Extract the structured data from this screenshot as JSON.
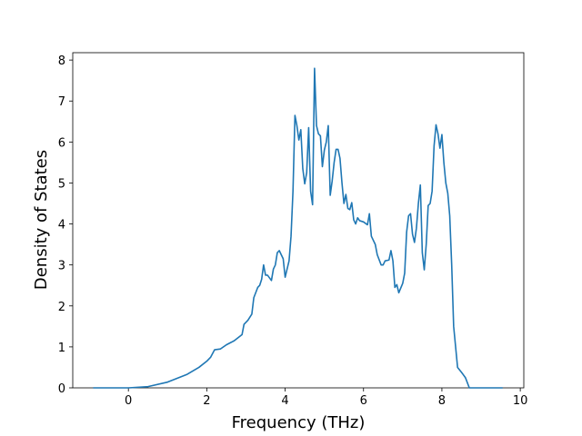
{
  "chart_data": {
    "type": "line",
    "xlabel": "Frequency (THz)",
    "ylabel": "Density of States",
    "x": [
      -0.9,
      0,
      0.5,
      1.0,
      1.5,
      1.8,
      2.0,
      2.1,
      2.2,
      2.35,
      2.5,
      2.7,
      2.9,
      2.95,
      3.05,
      3.15,
      3.2,
      3.3,
      3.35,
      3.4,
      3.45,
      3.5,
      3.55,
      3.65,
      3.7,
      3.75,
      3.8,
      3.85,
      3.95,
      4.0,
      4.1,
      4.15,
      4.2,
      4.25,
      4.3,
      4.35,
      4.4,
      4.45,
      4.5,
      4.55,
      4.6,
      4.65,
      4.7,
      4.75,
      4.8,
      4.85,
      4.9,
      4.95,
      5.0,
      5.05,
      5.1,
      5.15,
      5.2,
      5.25,
      5.3,
      5.35,
      5.4,
      5.45,
      5.5,
      5.55,
      5.6,
      5.65,
      5.7,
      5.75,
      5.8,
      5.85,
      5.9,
      6.0,
      6.1,
      6.15,
      6.2,
      6.3,
      6.35,
      6.45,
      6.5,
      6.55,
      6.65,
      6.7,
      6.75,
      6.8,
      6.85,
      6.9,
      7.0,
      7.05,
      7.1,
      7.15,
      7.2,
      7.25,
      7.3,
      7.35,
      7.4,
      7.45,
      7.5,
      7.55,
      7.6,
      7.65,
      7.7,
      7.75,
      7.8,
      7.85,
      7.9,
      7.95,
      8.0,
      8.05,
      8.1,
      8.15,
      8.2,
      8.25,
      8.3,
      8.35,
      8.4,
      8.5,
      8.6,
      8.7,
      9.55
    ],
    "series": [
      {
        "color": "#1f77b4",
        "values": [
          0,
          0,
          0.03,
          0.14,
          0.33,
          0.5,
          0.65,
          0.75,
          0.93,
          0.95,
          1.05,
          1.15,
          1.3,
          1.55,
          1.65,
          1.8,
          2.2,
          2.45,
          2.5,
          2.65,
          3.0,
          2.75,
          2.75,
          2.62,
          2.9,
          3.0,
          3.3,
          3.35,
          3.15,
          2.7,
          3.1,
          3.7,
          4.8,
          6.65,
          6.4,
          6.05,
          6.3,
          5.35,
          4.98,
          5.25,
          6.35,
          4.8,
          4.47,
          7.8,
          6.4,
          6.2,
          6.15,
          5.4,
          5.8,
          6.0,
          6.4,
          4.7,
          5.05,
          5.5,
          5.82,
          5.82,
          5.6,
          5.0,
          4.5,
          4.72,
          4.38,
          4.35,
          4.52,
          4.1,
          4.0,
          4.15,
          4.08,
          4.05,
          3.98,
          4.25,
          3.7,
          3.5,
          3.25,
          3.0,
          3.0,
          3.1,
          3.12,
          3.35,
          3.1,
          2.45,
          2.52,
          2.32,
          2.55,
          2.8,
          3.8,
          4.2,
          4.25,
          3.75,
          3.55,
          3.9,
          4.5,
          4.95,
          3.3,
          2.88,
          3.5,
          4.45,
          4.5,
          4.8,
          5.9,
          6.42,
          6.2,
          5.85,
          6.18,
          5.5,
          5.0,
          4.75,
          4.2,
          3.0,
          1.5,
          1.0,
          0.5,
          0.38,
          0.25,
          0,
          0
        ]
      }
    ],
    "xlim": [
      -1.42,
      10.09
    ],
    "ylim": [
      0,
      8.18
    ],
    "xticks": [
      0,
      2,
      4,
      6,
      8,
      10
    ],
    "yticks": [
      0,
      1,
      2,
      3,
      4,
      5,
      6,
      7,
      8
    ]
  }
}
